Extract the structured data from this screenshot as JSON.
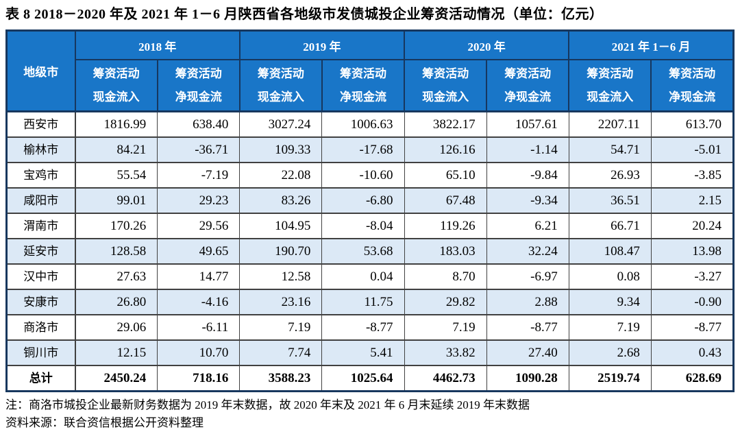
{
  "title": "表 8  2018－2020 年及 2021 年 1－6 月陕西省各地级市发债城投企业筹资活动情况（单位：亿元）",
  "colors": {
    "header_bg": "#1976C8",
    "row_alt_bg": "#DCE9F6",
    "border_dark": "#17375E",
    "header_text": "#FFFFFF"
  },
  "table": {
    "corner_header": "地级市",
    "year_groups": [
      {
        "label": "2018 年"
      },
      {
        "label": "2019 年"
      },
      {
        "label": "2020 年"
      },
      {
        "label": "2021 年 1－6 月"
      }
    ],
    "sub_cols": [
      {
        "line1": "筹资活动",
        "line2": "现金流入"
      },
      {
        "line1": "筹资活动",
        "line2": "净现金流"
      }
    ],
    "rows": [
      {
        "name": "西安市",
        "values": [
          "1816.99",
          "638.40",
          "3027.24",
          "1006.63",
          "3822.17",
          "1057.61",
          "2207.11",
          "613.70"
        ]
      },
      {
        "name": "榆林市",
        "values": [
          "84.21",
          "-36.71",
          "109.33",
          "-17.68",
          "126.16",
          "-1.14",
          "54.71",
          "-5.01"
        ]
      },
      {
        "name": "宝鸡市",
        "values": [
          "55.54",
          "-7.19",
          "22.08",
          "-10.60",
          "65.10",
          "-9.84",
          "26.93",
          "-3.85"
        ]
      },
      {
        "name": "咸阳市",
        "values": [
          "99.01",
          "29.23",
          "83.26",
          "-6.80",
          "67.48",
          "-9.34",
          "36.51",
          "2.15"
        ]
      },
      {
        "name": "渭南市",
        "values": [
          "170.26",
          "29.56",
          "104.95",
          "-8.04",
          "119.26",
          "6.21",
          "66.71",
          "20.24"
        ]
      },
      {
        "name": "延安市",
        "values": [
          "128.58",
          "49.65",
          "190.70",
          "53.68",
          "183.03",
          "32.24",
          "108.47",
          "13.98"
        ]
      },
      {
        "name": "汉中市",
        "values": [
          "27.63",
          "14.77",
          "12.58",
          "0.04",
          "8.70",
          "-6.97",
          "0.08",
          "-3.27"
        ]
      },
      {
        "name": "安康市",
        "values": [
          "26.80",
          "-4.16",
          "23.16",
          "11.75",
          "29.82",
          "2.88",
          "9.34",
          "-0.90"
        ]
      },
      {
        "name": "商洛市",
        "values": [
          "29.06",
          "-6.11",
          "7.19",
          "-8.77",
          "7.19",
          "-8.77",
          "7.19",
          "-8.77"
        ]
      },
      {
        "name": "铜川市",
        "values": [
          "12.15",
          "10.70",
          "7.74",
          "5.41",
          "33.82",
          "27.40",
          "2.68",
          "0.43"
        ]
      }
    ],
    "total_row": {
      "name": "总计",
      "values": [
        "2450.24",
        "718.16",
        "3588.23",
        "1025.64",
        "4462.73",
        "1090.28",
        "2519.74",
        "628.69"
      ],
      "bold": true
    }
  },
  "notes": {
    "note": "注：商洛市城投企业最新财务数据为 2019 年末数据，故 2020 年末及 2021 年 6 月末延续 2019 年末数据",
    "source": "资料来源：联合资信根据公开资料整理"
  }
}
